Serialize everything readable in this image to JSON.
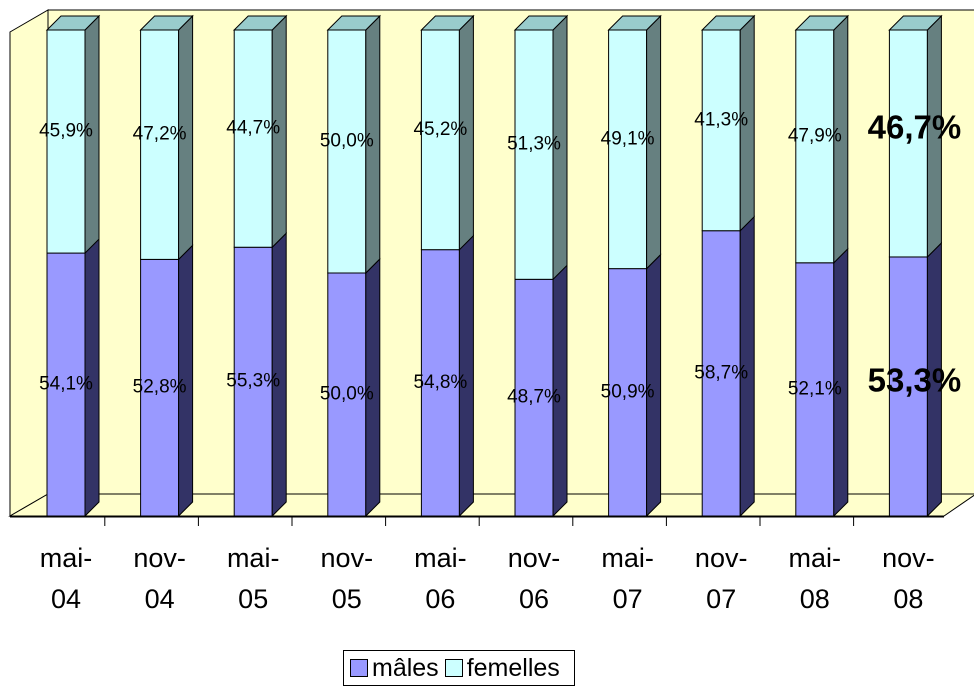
{
  "chart_data": {
    "type": "bar",
    "stacked": true,
    "percent": true,
    "three_d": true,
    "categories": [
      [
        "mai-",
        "04"
      ],
      [
        "nov-",
        "04"
      ],
      [
        "mai-",
        "05"
      ],
      [
        "nov-",
        "05"
      ],
      [
        "mai-",
        "06"
      ],
      [
        "nov-",
        "06"
      ],
      [
        "mai-",
        "07"
      ],
      [
        "nov-",
        "07"
      ],
      [
        "mai-",
        "08"
      ],
      [
        "nov-",
        "08"
      ]
    ],
    "series": [
      {
        "name": "mâles",
        "color": "#9999ff",
        "values": [
          54.1,
          52.8,
          55.3,
          50.0,
          54.8,
          48.7,
          50.9,
          58.7,
          52.1,
          53.3
        ],
        "labels": [
          "54,1%",
          "52,8%",
          "55,3%",
          "50,0%",
          "54,8%",
          "48,7%",
          "50,9%",
          "58,7%",
          "52,1%",
          "53,3%"
        ]
      },
      {
        "name": "femelles",
        "color": "#ccffff",
        "values": [
          45.9,
          47.2,
          44.7,
          50.0,
          45.2,
          51.3,
          49.1,
          41.3,
          47.9,
          46.7
        ],
        "labels": [
          "45,9%",
          "47,2%",
          "44,7%",
          "50,0%",
          "45,2%",
          "51,3%",
          "49,1%",
          "41,3%",
          "47,9%",
          "46,7%"
        ]
      }
    ],
    "ylim": [
      0,
      100
    ],
    "highlight_last": true,
    "wall_color": "#ffffcc",
    "legend_position": "bottom"
  },
  "legend": {
    "males": "mâles",
    "females": "femelles"
  }
}
